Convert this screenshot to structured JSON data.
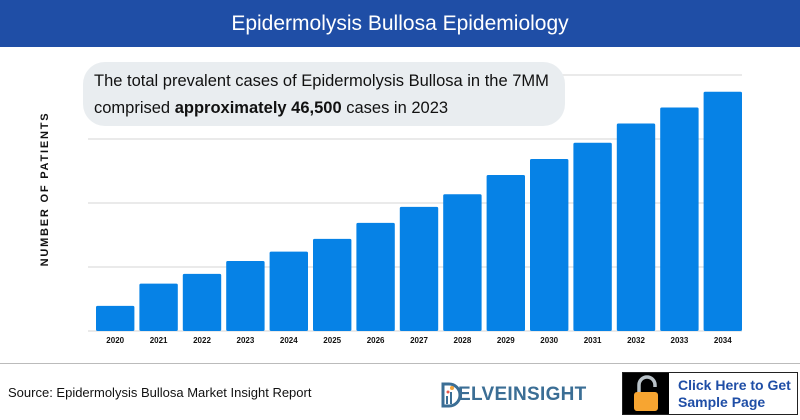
{
  "header": {
    "title": "Epidermolysis Bullosa Epidemiology"
  },
  "callout": {
    "text_before": "The total prevalent cases of Epidermolysis Bullosa in the 7MM comprised ",
    "text_bold": "approximately 46,500",
    "text_after": " cases in 2023"
  },
  "chart_data": {
    "type": "bar",
    "title": "",
    "xlabel": "",
    "ylabel": "NUMBER OF PATIENTS",
    "categories": [
      "2020",
      "2021",
      "2022",
      "2023",
      "2024",
      "2025",
      "2026",
      "2027",
      "2028",
      "2029",
      "2030",
      "2031",
      "2032",
      "2033",
      "2034"
    ],
    "values": [
      16700,
      31500,
      37900,
      46500,
      52700,
      61200,
      71800,
      82400,
      90800,
      103600,
      114200,
      125000,
      137800,
      148400,
      158900
    ],
    "ylim": [
      0,
      170000
    ],
    "y_gridlines": [
      0,
      42500,
      85000,
      127500,
      170000
    ],
    "grid": true,
    "y_tick_labels_shown": false,
    "bar_color": "#0682e6",
    "grid_color": "#e3e3e3"
  },
  "footer": {
    "source": "Source: Epidermolysis Bullosa Market Insight Report",
    "logo_text": "ELVEINSIGHT",
    "cta_label_line1": "Click Here to Get",
    "cta_label_line2": "Sample Page",
    "cta_icon": "unlocked-padlock-icon",
    "lock_color": "#f7a531"
  },
  "colors": {
    "header_bg": "#1f4ea6",
    "callout_bg": "#e9edf0"
  }
}
